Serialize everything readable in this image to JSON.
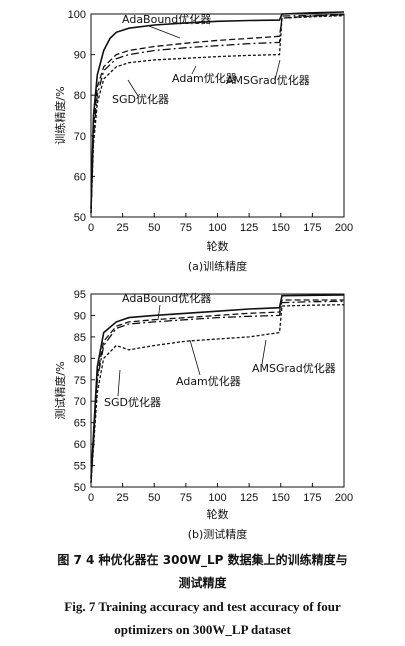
{
  "chart_data": [
    {
      "type": "line",
      "subtitle": "(a)训练精度",
      "xlabel": "轮数",
      "ylabel": "训练精度/%",
      "xlim": [
        0,
        200
      ],
      "ylim": [
        50,
        100
      ],
      "xticks": [
        0,
        25,
        50,
        75,
        100,
        125,
        150,
        175,
        200
      ],
      "yticks": [
        50,
        60,
        70,
        80,
        90,
        100
      ],
      "grid": false,
      "legend": "none",
      "series": [
        {
          "name": "AdaBound优化器",
          "style": "solid",
          "points": [
            [
              0,
              52
            ],
            [
              2,
              75
            ],
            [
              5,
              85
            ],
            [
              10,
              91
            ],
            [
              15,
              94
            ],
            [
              20,
              95.5
            ],
            [
              30,
              96.5
            ],
            [
              50,
              97.3
            ],
            [
              75,
              97.8
            ],
            [
              100,
              98.2
            ],
            [
              125,
              98.4
            ],
            [
              149,
              98.5
            ],
            [
              151,
              100
            ],
            [
              175,
              100.3
            ],
            [
              200,
              100.5
            ]
          ]
        },
        {
          "name": "Adam优化器",
          "style": "dashed",
          "points": [
            [
              0,
              51
            ],
            [
              2,
              72
            ],
            [
              5,
              82
            ],
            [
              10,
              87
            ],
            [
              20,
              90
            ],
            [
              30,
              91
            ],
            [
              50,
              92
            ],
            [
              75,
              92.8
            ],
            [
              100,
              93.5
            ],
            [
              125,
              94
            ],
            [
              149,
              94.5
            ],
            [
              151,
              99
            ],
            [
              175,
              99.5
            ],
            [
              200,
              99.8
            ]
          ]
        },
        {
          "name": "AMSGrad优化器",
          "style": "dash-dot",
          "points": [
            [
              0,
              51
            ],
            [
              2,
              70
            ],
            [
              5,
              80
            ],
            [
              10,
              86
            ],
            [
              20,
              89
            ],
            [
              30,
              90
            ],
            [
              50,
              91
            ],
            [
              75,
              91.7
            ],
            [
              100,
              92.2
            ],
            [
              125,
              92.7
            ],
            [
              149,
              93
            ],
            [
              151,
              99.5
            ],
            [
              175,
              99.6
            ],
            [
              200,
              99.8
            ]
          ]
        },
        {
          "name": "SGD优化器",
          "style": "dotted",
          "points": [
            [
              0,
              51
            ],
            [
              2,
              68
            ],
            [
              5,
              78
            ],
            [
              10,
              84
            ],
            [
              20,
              87
            ],
            [
              30,
              88
            ],
            [
              50,
              88.7
            ],
            [
              75,
              89.1
            ],
            [
              100,
              89.5
            ],
            [
              125,
              89.8
            ],
            [
              149,
              90
            ],
            [
              151,
              99
            ],
            [
              175,
              99.3
            ],
            [
              200,
              99.6
            ]
          ]
        }
      ],
      "annotations": [
        "AdaBound优化器",
        "Adam优化器",
        "AMSGrad优化器",
        "SGD优化器"
      ]
    },
    {
      "type": "line",
      "subtitle": "(b)测试精度",
      "xlabel": "轮数",
      "ylabel": "测试精度/%",
      "xlim": [
        0,
        200
      ],
      "ylim": [
        50,
        95
      ],
      "xticks": [
        0,
        25,
        50,
        75,
        100,
        125,
        150,
        175,
        200
      ],
      "yticks": [
        50,
        55,
        60,
        65,
        70,
        75,
        80,
        85,
        90,
        95
      ],
      "grid": false,
      "legend": "none",
      "series": [
        {
          "name": "AdaBound优化器",
          "style": "solid",
          "points": [
            [
              0,
              52
            ],
            [
              5,
              78
            ],
            [
              10,
              86
            ],
            [
              20,
              88.5
            ],
            [
              30,
              89.5
            ],
            [
              50,
              90
            ],
            [
              75,
              90.5
            ],
            [
              100,
              91
            ],
            [
              125,
              91.5
            ],
            [
              149,
              91.8
            ],
            [
              151,
              94.6
            ],
            [
              175,
              94.7
            ],
            [
              200,
              94.8
            ]
          ]
        },
        {
          "name": "Adam优化器",
          "style": "dashed",
          "points": [
            [
              0,
              51
            ],
            [
              5,
              76
            ],
            [
              10,
              84
            ],
            [
              20,
              87.5
            ],
            [
              30,
              88.5
            ],
            [
              50,
              89
            ],
            [
              75,
              89.5
            ],
            [
              100,
              90
            ],
            [
              125,
              90.5
            ],
            [
              149,
              90.8
            ],
            [
              151,
              93.6
            ],
            [
              175,
              93.6
            ],
            [
              200,
              93.6
            ]
          ]
        },
        {
          "name": "AMSGrad优化器",
          "style": "dash-dot",
          "points": [
            [
              0,
              51
            ],
            [
              5,
              75
            ],
            [
              10,
              83
            ],
            [
              20,
              87
            ],
            [
              30,
              88
            ],
            [
              50,
              88.5
            ],
            [
              75,
              89
            ],
            [
              100,
              89.5
            ],
            [
              125,
              89.8
            ],
            [
              149,
              90
            ],
            [
              151,
              93
            ],
            [
              175,
              93.2
            ],
            [
              200,
              93.3
            ]
          ]
        },
        {
          "name": "SGD优化器",
          "style": "dotted",
          "points": [
            [
              0,
              51
            ],
            [
              5,
              72
            ],
            [
              10,
              80
            ],
            [
              20,
              83
            ],
            [
              30,
              82
            ],
            [
              50,
              83
            ],
            [
              75,
              84
            ],
            [
              100,
              84.5
            ],
            [
              125,
              85
            ],
            [
              149,
              86
            ],
            [
              151,
              92.2
            ],
            [
              175,
              92.4
            ],
            [
              200,
              92.5
            ]
          ]
        }
      ],
      "annotations": [
        "AdaBound优化器",
        "Adam优化器",
        "AMSGrad优化器",
        "SGD优化器"
      ]
    }
  ],
  "caption": {
    "cn_line1": "图 7    4 种优化器在 300W_LP 数据集上的训练精度与",
    "cn_line2": "测试精度",
    "en_line1": "Fig. 7    Training accuracy and test accuracy of four",
    "en_line2": "optimizers on 300W_LP dataset"
  }
}
